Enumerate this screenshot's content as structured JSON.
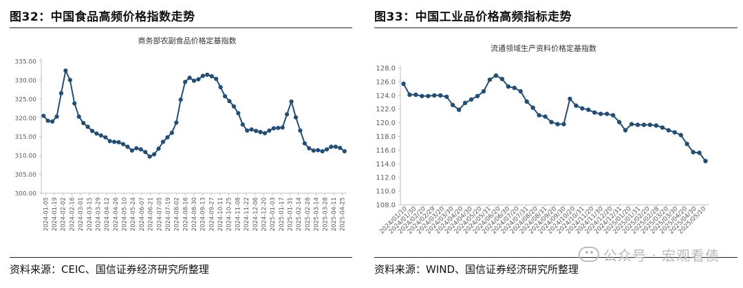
{
  "panels": [
    {
      "figure_title": "图32：中国食品高频价格指数走势",
      "source": "资料来源：CEIC、国信证券经济研究所整理"
    },
    {
      "figure_title": "图33：中国工业品价格高频指标走势",
      "source": "资料来源：WIND、国信证券经济研究所整理"
    }
  ],
  "watermark": "公众号 · 宏观看债",
  "colors": {
    "series": "#1f4e79",
    "axis": "#bfbfbf",
    "text": "#595959"
  },
  "chart_data": [
    {
      "type": "line",
      "title": "商务部农副食品价格定基指数",
      "xlabel": "",
      "ylabel": "",
      "ylim": [
        300,
        335
      ],
      "yticks": [
        "300.00",
        "305.00",
        "310.00",
        "315.00",
        "320.00",
        "325.00",
        "330.00",
        "335.00"
      ],
      "xticks": [
        "2024-01-05",
        "2024-01-19",
        "2024-02-02",
        "2024-02-16",
        "2024-03-01",
        "2024-03-15",
        "2024-03-29",
        "2024-04-12",
        "2024-04-26",
        "2024-05-10",
        "2024-05-24",
        "2024-06-07",
        "2024-06-21",
        "2024-07-05",
        "2024-07-19",
        "2024-08-02",
        "2024-08-16",
        "2024-08-30",
        "2024-09-13",
        "2024-09-27",
        "2024-10-11",
        "2024-10-25",
        "2024-11-08",
        "2024-11-22",
        "2024-12-06",
        "2024-12-20",
        "2025-01-03",
        "2025-01-17",
        "2025-01-31",
        "2025-02-14",
        "2025-02-28",
        "2025-03-14",
        "2025-03-28",
        "2025-04-11",
        "2025-04-25"
      ],
      "grid": false,
      "legend": "none",
      "series": [
        {
          "values": [
            320.5,
            319.2,
            319.0,
            320.3,
            326.5,
            332.5,
            330.0,
            323.8,
            320.3,
            318.6,
            317.6,
            316.5,
            315.8,
            315.3,
            314.8,
            313.8,
            313.6,
            313.5,
            313.0,
            312.3,
            311.3,
            311.9,
            311.6,
            310.9,
            309.7,
            310.3,
            311.8,
            313.6,
            314.8,
            316.0,
            318.7,
            324.8,
            329.5,
            330.6,
            329.8,
            330.2,
            331.1,
            331.4,
            331.0,
            330.3,
            328.1,
            325.7,
            324.4,
            323.0,
            321.2,
            318.2,
            316.6,
            316.9,
            316.5,
            316.2,
            315.9,
            316.6,
            317.2,
            317.3,
            317.4,
            320.9,
            324.3,
            320.1,
            316.6,
            313.2,
            311.9,
            311.3,
            311.4,
            311.1,
            311.6,
            312.3,
            312.3,
            312.0,
            311.1
          ]
        }
      ]
    },
    {
      "type": "line",
      "title": "流通领域生产资料价格定基指数",
      "xlabel": "",
      "ylabel": "",
      "ylim": [
        108,
        128
      ],
      "yticks": [
        "108.0",
        "110.0",
        "112.0",
        "114.0",
        "116.0",
        "118.0",
        "120.0",
        "122.0",
        "124.0",
        "126.0",
        "128.0"
      ],
      "xticks": [
        "2024/01/10",
        "2024/01/30",
        "2024/02/20",
        "2024/02/29",
        "2024/03/20",
        "2024/03/30",
        "2024/04/20",
        "2024/04/30",
        "2024/05/20",
        "2024/05/31",
        "2024/06/20",
        "2024/06/30",
        "2024/07/20",
        "2024/07/31",
        "2024/08/20",
        "2024/08/31",
        "2024/09/20",
        "2024/09/30",
        "2024/10/20",
        "2024/10/31",
        "2024/11/20",
        "2024/11/30",
        "2024/12/20",
        "2024/12/31",
        "2025/01/20",
        "2025/01/31",
        "2025/02/20",
        "2025/02/28",
        "2025/03/20",
        "2025/03/30",
        "2025/04/20",
        "2025/04/30",
        "2025/05/10"
      ],
      "grid": false,
      "legend": "none",
      "series": [
        {
          "values": [
            125.7,
            124.1,
            124.1,
            123.9,
            123.9,
            124.0,
            124.0,
            123.8,
            122.6,
            121.9,
            122.9,
            123.4,
            123.9,
            124.6,
            126.3,
            126.9,
            126.4,
            125.3,
            125.1,
            124.6,
            123.1,
            122.2,
            121.1,
            120.9,
            120.1,
            119.8,
            119.8,
            123.5,
            122.5,
            122.1,
            121.9,
            121.5,
            121.3,
            121.3,
            121.1,
            120.1,
            118.9,
            119.8,
            119.7,
            119.7,
            119.7,
            119.6,
            119.3,
            118.9,
            118.6,
            118.2,
            116.9,
            115.7,
            115.6,
            114.4
          ]
        }
      ]
    }
  ]
}
